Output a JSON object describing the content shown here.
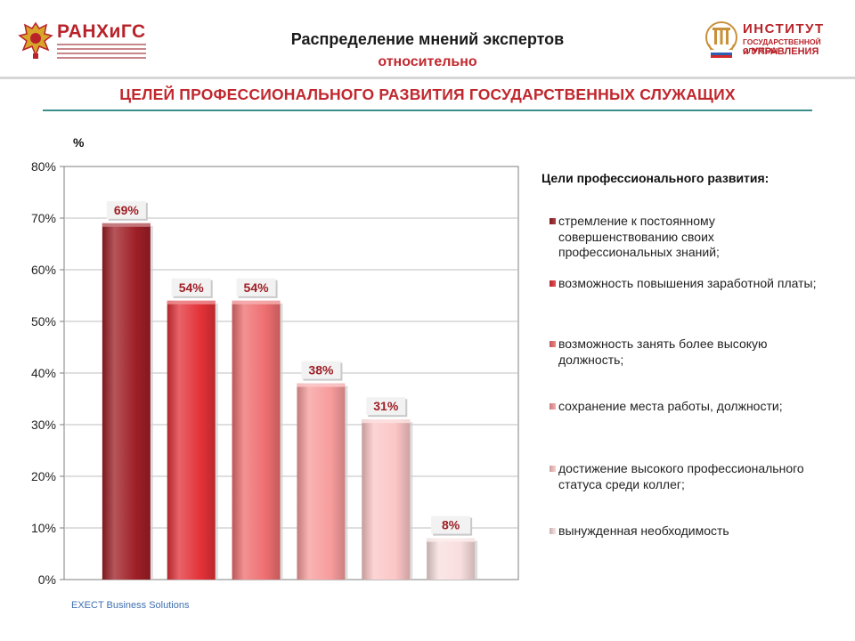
{
  "header": {
    "logo_left_text": "РАНХиГС",
    "logo_right_line1": "ИНСТИТУТ",
    "logo_right_line2": "ГОСУДАРСТВЕННОЙ СЛУЖБЫ",
    "logo_right_line3": "и УПРАВЛЕНИЯ",
    "title_line1": "Распределение мнений экспертов",
    "title_line2": "относительно",
    "title_line3": "ЦЕЛЕЙ ПРОФЕССИОНАЛЬНОГО РАЗВИТИЯ ГОСУДАРСТВЕННЫХ СЛУЖАЩИХ"
  },
  "colors": {
    "accent": "#c0282e",
    "rule": "#3a8f8a"
  },
  "chart_data": {
    "type": "bar",
    "ylabel": "%",
    "ylim": [
      0,
      80
    ],
    "yticks": [
      "0%",
      "10%",
      "20%",
      "30%",
      "40%",
      "50%",
      "60%",
      "70%",
      "80%"
    ],
    "grid": true,
    "legend_position": "right",
    "legend_title": "Цели профессионального развития:",
    "categories": [
      "стремление к постоянному совершенствованию своих профессиональных знаний;",
      "возможность повышения заработной платы;",
      "возможность занять более высокую должность;",
      "сохранение места работы, должности;",
      "достижение высокого профессионального статуса среди коллег;",
      "вынужденная необходимость"
    ],
    "values": [
      69,
      54,
      54,
      38,
      31,
      8
    ],
    "data_labels": [
      "69%",
      "54%",
      "54%",
      "38%",
      "31%",
      "8%"
    ],
    "colors": [
      "#9e1f26",
      "#e23238",
      "#ee6e70",
      "#f79c9c",
      "#fcc6c6",
      "#f9dede"
    ]
  },
  "footer": {
    "text": "EXECT Business Solutions"
  }
}
